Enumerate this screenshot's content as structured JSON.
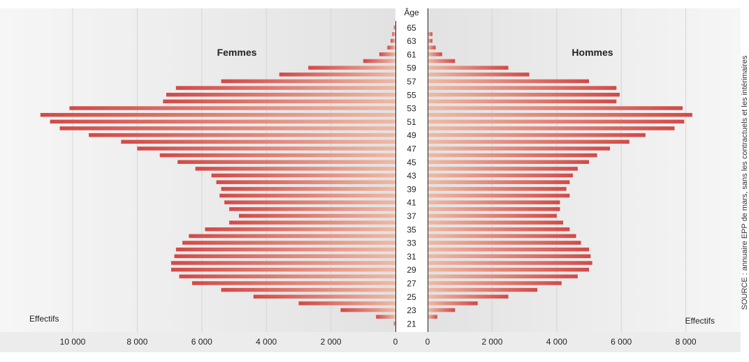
{
  "chart_data": {
    "type": "bar",
    "subtype": "population-pyramid",
    "age_axis_title": "Âge",
    "age_tick_labels": [
      "21",
      "23",
      "25",
      "27",
      "29",
      "31",
      "33",
      "35",
      "37",
      "41",
      "39",
      "43",
      "45",
      "47",
      "49",
      "51",
      "53",
      "55",
      "57",
      "59",
      "61",
      "63",
      "65"
    ],
    "left_title": "Femmes",
    "right_title": "Hommes",
    "xlabel_left": "Effectifs",
    "xlabel_right": "Effectifs",
    "left_ticks": [
      {
        "value": 10000,
        "label": "10 000"
      },
      {
        "value": 8000,
        "label": "8 000"
      },
      {
        "value": 6000,
        "label": "6 000"
      },
      {
        "value": 4000,
        "label": "4 000"
      },
      {
        "value": 2000,
        "label": "2 000"
      },
      {
        "value": 0,
        "label": "0"
      }
    ],
    "right_ticks": [
      {
        "value": 0,
        "label": "0"
      },
      {
        "value": 2000,
        "label": "2 000"
      },
      {
        "value": 4000,
        "label": "4 000"
      },
      {
        "value": 6000,
        "label": "6 000"
      },
      {
        "value": 8000,
        "label": "8 000"
      }
    ],
    "left_xlim": [
      0,
      11300
    ],
    "right_xlim": [
      0,
      8800
    ],
    "grid": true,
    "series": [
      {
        "name": "Femmes",
        "values": [
          50,
          600,
          1700,
          3000,
          4400,
          5400,
          6300,
          6700,
          6950,
          6950,
          6850,
          6800,
          6600,
          6400,
          5900,
          5150,
          4850,
          5150,
          5300,
          5450,
          5400,
          5550,
          5700,
          6200,
          6750,
          7300,
          8000,
          8500,
          9500,
          10400,
          10700,
          11000,
          10100,
          7200,
          7100,
          6800,
          5400,
          3600,
          2700,
          1000,
          500,
          250,
          150,
          100,
          50
        ]
      },
      {
        "name": "Hommes",
        "values": [
          0,
          300,
          850,
          1550,
          2500,
          3400,
          4150,
          4650,
          5000,
          5100,
          5050,
          5000,
          4750,
          4600,
          4400,
          4200,
          4000,
          4100,
          4100,
          4400,
          4300,
          4400,
          4500,
          4650,
          5000,
          5250,
          5650,
          6250,
          6750,
          7650,
          7950,
          8200,
          7900,
          5850,
          5950,
          5850,
          5000,
          3150,
          2500,
          850,
          450,
          250,
          150,
          150,
          0
        ]
      }
    ]
  },
  "source_note": "SOURCE : annuaire EPP de mars, sans les contractuels et les intérimaires",
  "colors": {
    "bar_dark": "#d24a48",
    "bar_light": "#efb9a4",
    "panel_light": "#f6f6f6",
    "panel_dark": "#e2e2e2",
    "footer_band": "#ececec",
    "grid": "#d4d4d4"
  }
}
